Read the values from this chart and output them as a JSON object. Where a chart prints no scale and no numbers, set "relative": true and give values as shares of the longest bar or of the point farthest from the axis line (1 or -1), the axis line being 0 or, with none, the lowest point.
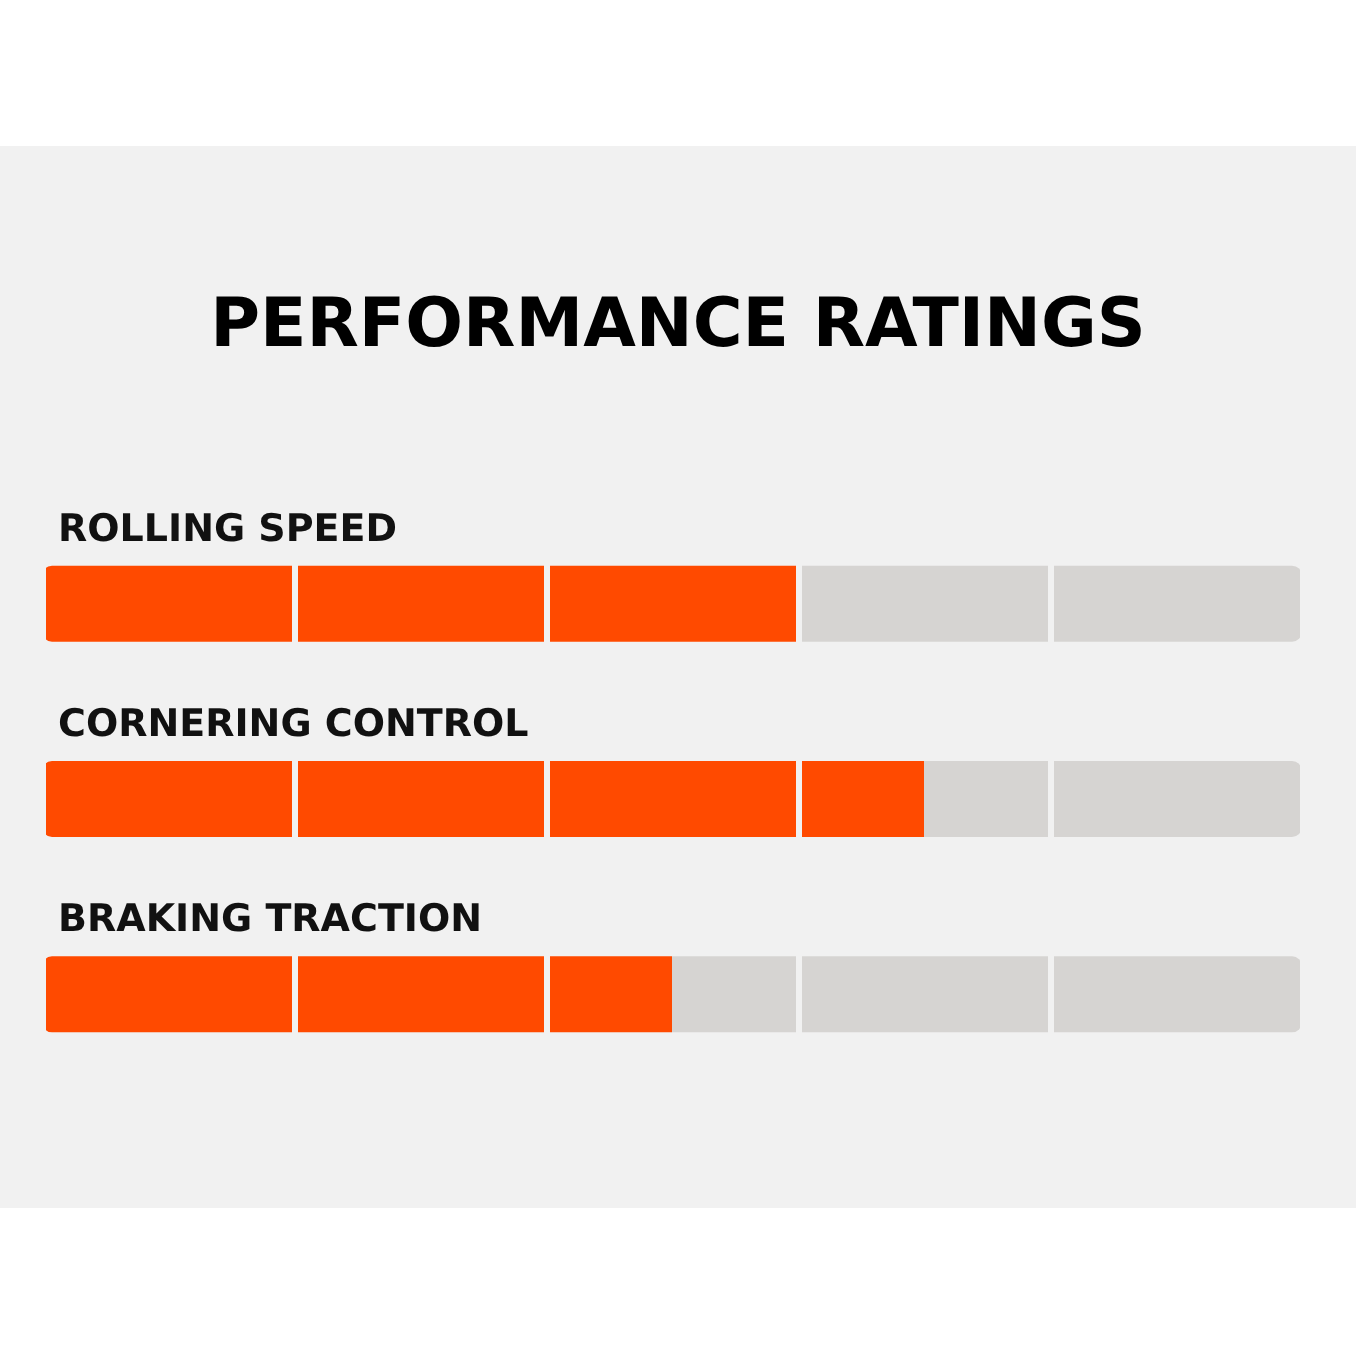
{
  "chart_data": {
    "type": "bar",
    "orientation": "horizontal",
    "stacked": true,
    "relative": true,
    "title": "PERFORMANCE RATINGS",
    "categories": [
      "ROLLING SPEED",
      "CORNERING CONTROL",
      "BRAKING TRACTION"
    ],
    "series": [
      {
        "color": "#ff4a00",
        "values": [
          0.6,
          0.7,
          0.5
        ]
      },
      {
        "color": "#d6d4d2",
        "values": [
          0.4,
          0.3,
          0.5
        ]
      }
    ],
    "grid": "x"
  }
}
